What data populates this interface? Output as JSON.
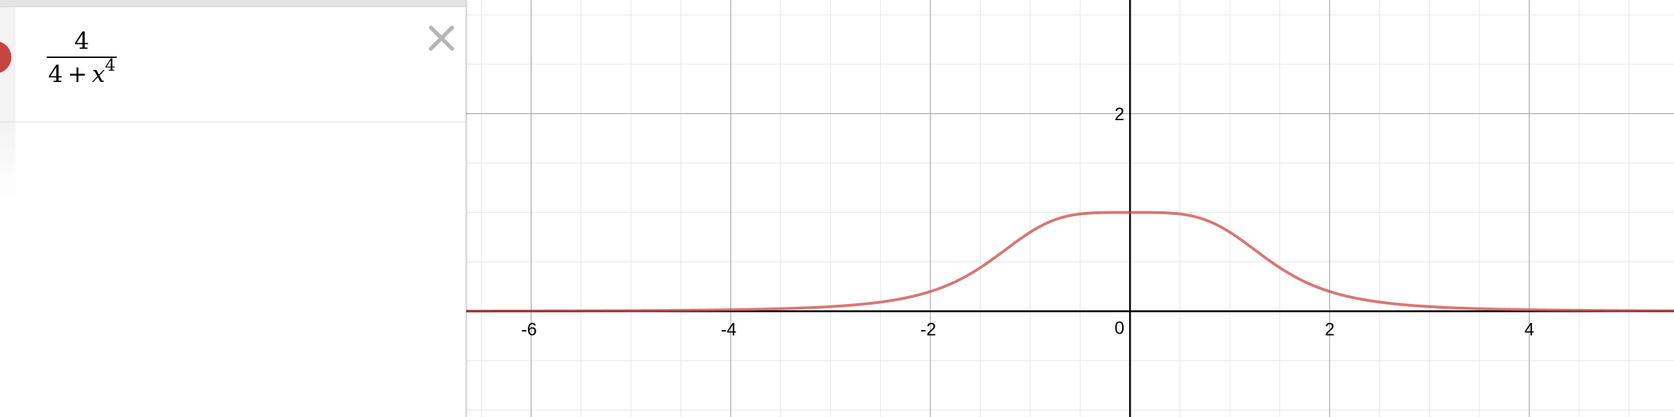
{
  "expression_list": {
    "items": [
      {
        "color": "#c74440",
        "numerator": "4",
        "denominator_constant": "4",
        "denominator_operator": "+",
        "denominator_variable": "x",
        "denominator_exponent": "4",
        "delete_icon": "close-icon"
      }
    ]
  },
  "graph": {
    "x_tick_labels": [
      "-6",
      "-4",
      "-2",
      "0",
      "2",
      "4"
    ],
    "y_tick_labels": [
      "2"
    ],
    "curve_color": "#c74440"
  },
  "chart_data": {
    "type": "line",
    "series": [
      {
        "name": "",
        "function": "4/(4+x^4)"
      }
    ],
    "xlim": [
      -6.65,
      5.45
    ],
    "ylim": [
      -1.07,
      3.15
    ],
    "x_ticks": [
      -6,
      -4,
      -2,
      0,
      2,
      4
    ],
    "y_ticks": [
      2
    ],
    "grid": true
  }
}
